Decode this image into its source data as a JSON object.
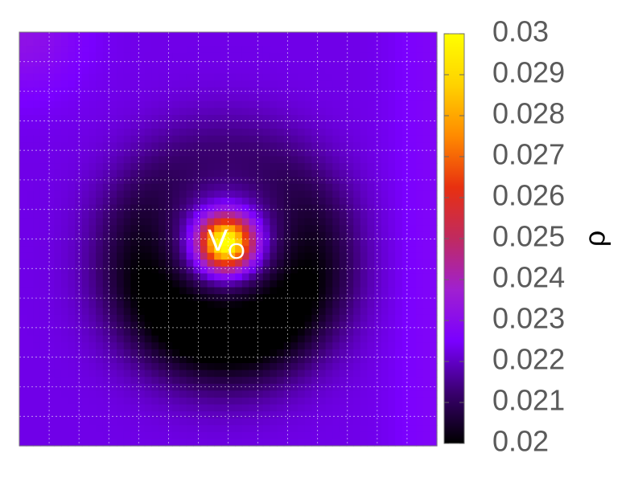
{
  "chart_data": {
    "type": "heatmap",
    "title": "",
    "xlabel": "",
    "ylabel": "",
    "colorbar_label": "ρ",
    "colorbar_range": [
      0.02,
      0.03
    ],
    "colorbar_ticks": [
      "0.02",
      "0.021",
      "0.022",
      "0.023",
      "0.024",
      "0.025",
      "0.026",
      "0.027",
      "0.028",
      "0.029",
      "0.03"
    ],
    "colormap": "gnuplot-pm3d (black-purple-red-orange-yellow)",
    "colormap_stops": [
      "#000000",
      "#3a0070",
      "#7a00ff",
      "#a020d0",
      "#c02a60",
      "#e83010",
      "#ff8a00",
      "#ffd200",
      "#ffff00"
    ],
    "grid": true,
    "grid_color": "#ffffff",
    "annotation": {
      "text": "V",
      "subscript": "O"
    },
    "data_description": "density map on a 60x60 grid; central peak ~0.030 at the vacancy, dark depletion ring ~0.020 around it, background ~0.0223",
    "grid_size": [
      60,
      60
    ],
    "background_value": 0.0223,
    "peak_value": 0.03,
    "ring_min_value": 0.02
  }
}
